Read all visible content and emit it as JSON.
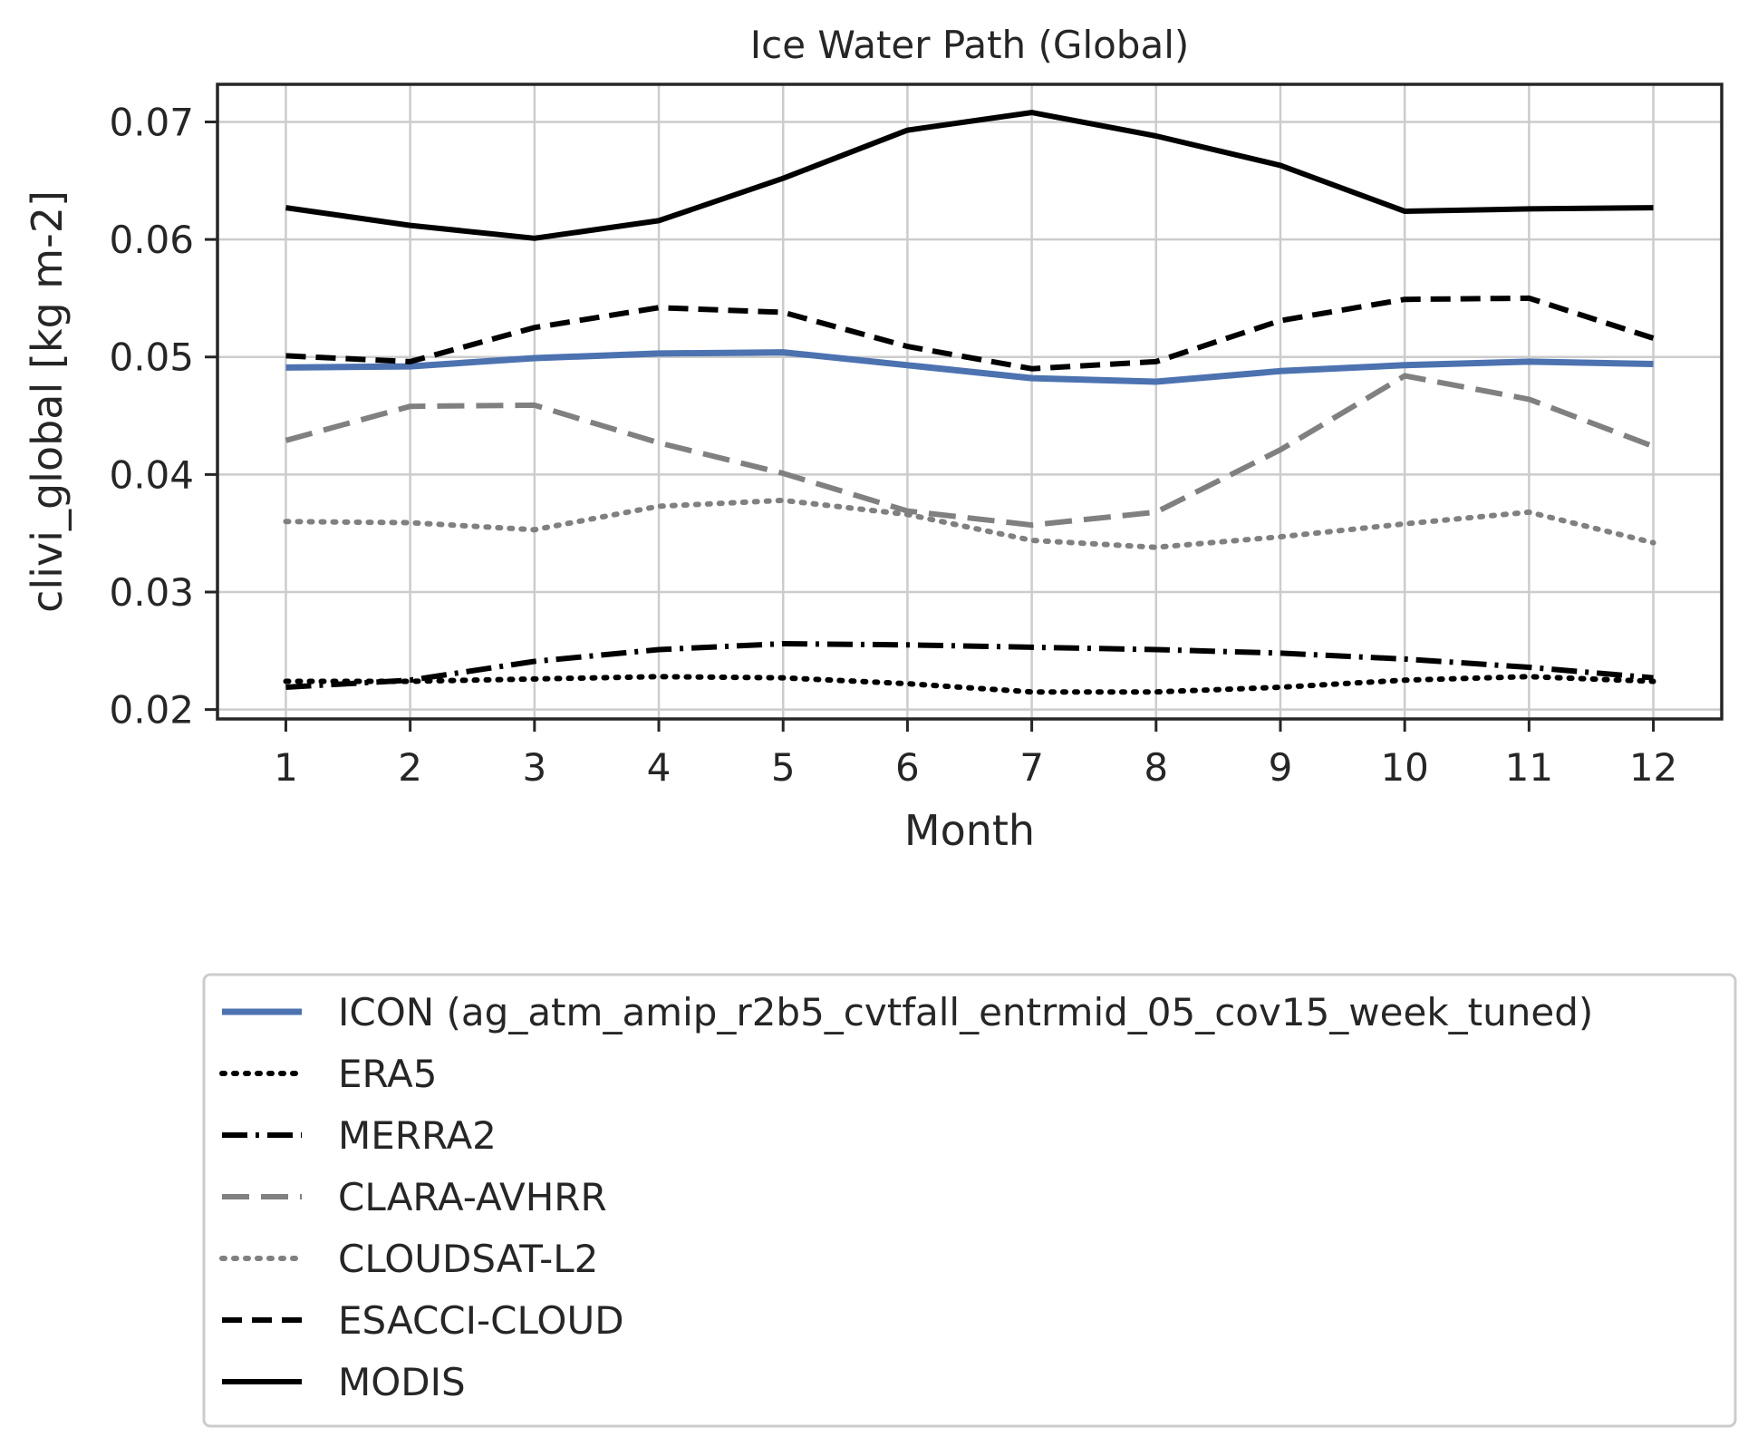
{
  "chart_data": {
    "type": "line",
    "title": "Ice Water Path (Global)",
    "xlabel": "Month",
    "ylabel": "clivi_global [kg m-2]",
    "x": [
      1,
      2,
      3,
      4,
      5,
      6,
      7,
      8,
      9,
      10,
      11,
      12
    ],
    "xlim": [
      0.45,
      12.55
    ],
    "ylim": [
      0.0192,
      0.0732
    ],
    "yticks": [
      0.02,
      0.03,
      0.04,
      0.05,
      0.06,
      0.07
    ],
    "ytick_labels": [
      "0.02",
      "0.03",
      "0.04",
      "0.05",
      "0.06",
      "0.07"
    ],
    "grid": true,
    "legend_position": "below",
    "series": [
      {
        "name": "ICON (ag_atm_amip_r2b5_cvtfall_entrmid_05_cov15_week_tuned)",
        "color": "#4c72b0",
        "style": "solid",
        "values": [
          0.0491,
          0.0492,
          0.0499,
          0.0503,
          0.0504,
          0.0493,
          0.0482,
          0.0479,
          0.0488,
          0.0493,
          0.0496,
          0.0494
        ]
      },
      {
        "name": "ERA5",
        "color": "#000000",
        "style": "dotted",
        "values": [
          0.0224,
          0.0224,
          0.0226,
          0.0228,
          0.0227,
          0.0222,
          0.0215,
          0.0215,
          0.0219,
          0.0225,
          0.0228,
          0.0224
        ]
      },
      {
        "name": "MERRA2",
        "color": "#000000",
        "style": "dashdot",
        "values": [
          0.0219,
          0.0225,
          0.0241,
          0.0251,
          0.0256,
          0.0255,
          0.0253,
          0.0251,
          0.0248,
          0.0243,
          0.0236,
          0.0227
        ]
      },
      {
        "name": "CLARA-AVHRR",
        "color": "#808080",
        "style": "longdash",
        "values": [
          0.0429,
          0.0458,
          0.0459,
          0.0427,
          0.0401,
          0.0369,
          0.0357,
          0.0368,
          0.0421,
          0.0484,
          0.0464,
          0.0424
        ]
      },
      {
        "name": "CLOUDSAT-L2",
        "color": "#808080",
        "style": "dotted",
        "values": [
          0.036,
          0.0359,
          0.0353,
          0.0373,
          0.0378,
          0.0366,
          0.0344,
          0.0338,
          0.0347,
          0.0358,
          0.0368,
          0.0342
        ]
      },
      {
        "name": "ESACCI-CLOUD",
        "color": "#000000",
        "style": "dashed",
        "values": [
          0.0501,
          0.0496,
          0.0525,
          0.0542,
          0.0538,
          0.0509,
          0.049,
          0.0496,
          0.0531,
          0.0549,
          0.055,
          0.0516
        ]
      },
      {
        "name": "MODIS",
        "color": "#000000",
        "style": "solid",
        "values": [
          0.0627,
          0.0612,
          0.0601,
          0.0616,
          0.0652,
          0.0693,
          0.0708,
          0.0688,
          0.0663,
          0.0624,
          0.0626,
          0.0627
        ]
      }
    ]
  }
}
